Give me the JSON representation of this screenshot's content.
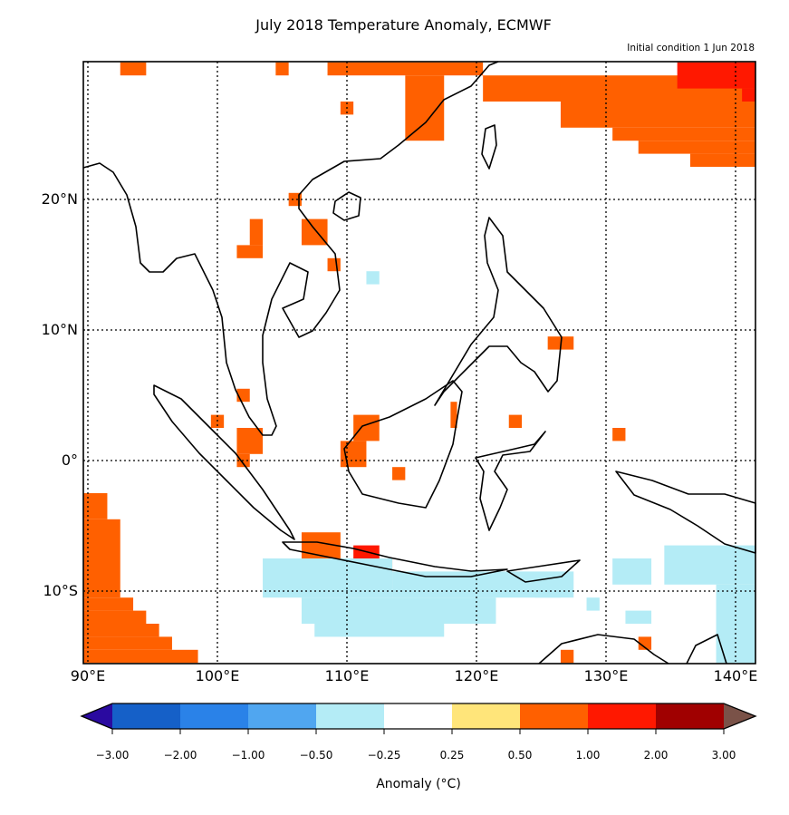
{
  "title": "July 2018 Temperature Anomaly, ECMWF",
  "subtitle": "Initial condition 1 Jun 2018",
  "map": {
    "extent": {
      "lon": [
        89.65,
        141.5
      ],
      "lat": [
        -15.5,
        30.5
      ]
    },
    "lon_ticks": [
      {
        "value": 90,
        "label": "90°E"
      },
      {
        "value": 100,
        "label": "100°E"
      },
      {
        "value": 110,
        "label": "110°E"
      },
      {
        "value": 120,
        "label": "120°E"
      },
      {
        "value": 130,
        "label": "130°E"
      },
      {
        "value": 140,
        "label": "140°E"
      }
    ],
    "lat_ticks": [
      {
        "value": 20,
        "label": "20°N"
      },
      {
        "value": 10,
        "label": "10°N"
      },
      {
        "value": 0,
        "label": "0°"
      },
      {
        "value": -10,
        "label": "10°S"
      }
    ],
    "gridlines": "dotted",
    "anomaly_cells_note_units": "degrees lon/lat, category index into colorbar bins",
    "anomaly_cells": [
      [
        92.5,
        94.5,
        29.5,
        30.5,
        6
      ],
      [
        104.5,
        105.5,
        29.5,
        30.5,
        6
      ],
      [
        108.5,
        120.5,
        29.5,
        30.5,
        6
      ],
      [
        114.5,
        117.5,
        24.5,
        29.5,
        6
      ],
      [
        109.5,
        110.5,
        26.5,
        27.5,
        6
      ],
      [
        120.5,
        141.5,
        27.5,
        29.5,
        6
      ],
      [
        126.5,
        141.5,
        25.5,
        27.5,
        6
      ],
      [
        130.5,
        141.5,
        24.5,
        25.5,
        6
      ],
      [
        132.5,
        141.5,
        23.5,
        24.5,
        6
      ],
      [
        136.5,
        141.5,
        22.5,
        23.5,
        6
      ],
      [
        135.5,
        141.5,
        28.5,
        30.5,
        7
      ],
      [
        140.5,
        141.5,
        27.5,
        28.5,
        7
      ],
      [
        105.5,
        106.5,
        19.5,
        20.5,
        6
      ],
      [
        106.5,
        108.5,
        16.5,
        18.5,
        6
      ],
      [
        108.5,
        109.5,
        14.5,
        15.5,
        6
      ],
      [
        102.5,
        103.5,
        16.5,
        18.5,
        6
      ],
      [
        101.5,
        103.5,
        15.5,
        16.5,
        6
      ],
      [
        125.5,
        127.5,
        8.5,
        9.5,
        6
      ],
      [
        101.5,
        102.5,
        4.5,
        5.5,
        6
      ],
      [
        99.5,
        100.5,
        2.5,
        3.5,
        6
      ],
      [
        101.5,
        103.5,
        0.5,
        2.5,
        6
      ],
      [
        101.5,
        102.5,
        -0.5,
        0.5,
        6
      ],
      [
        110.5,
        112.5,
        1.5,
        3.5,
        6
      ],
      [
        109.5,
        111.5,
        -0.5,
        1.5,
        6
      ],
      [
        118,
        118.5,
        2.5,
        4.5,
        6
      ],
      [
        113.5,
        114.5,
        -1.5,
        -0.5,
        6
      ],
      [
        122.5,
        123.5,
        2.5,
        3.5,
        6
      ],
      [
        130.5,
        131.5,
        1.5,
        2.5,
        6
      ],
      [
        89.65,
        91.5,
        -4.5,
        -2.5,
        6
      ],
      [
        89.65,
        92.5,
        -10.5,
        -4.5,
        6
      ],
      [
        89.65,
        93.5,
        -11.5,
        -10.5,
        6
      ],
      [
        89.65,
        94.5,
        -12.5,
        -11.5,
        6
      ],
      [
        89.65,
        95.5,
        -13.5,
        -12.5,
        6
      ],
      [
        89.65,
        96.5,
        -14.5,
        -13.5,
        6
      ],
      [
        89.65,
        98.5,
        -15.5,
        -14.5,
        6
      ],
      [
        106.5,
        109.5,
        -7.5,
        -5.5,
        6
      ],
      [
        112.5,
        113.5,
        -8.5,
        -7.5,
        6
      ],
      [
        132.5,
        133.5,
        -14.5,
        -13.5,
        6
      ],
      [
        126.5,
        127.5,
        -15.5,
        -14.5,
        6
      ],
      [
        110.5,
        112.5,
        -7.5,
        -6.5,
        7
      ],
      [
        103.5,
        113.5,
        -10.5,
        -7.5,
        3
      ],
      [
        106.5,
        121.5,
        -12.5,
        -10.5,
        3
      ],
      [
        107.5,
        117.5,
        -13.5,
        -12.5,
        3
      ],
      [
        113.5,
        127.5,
        -10.5,
        -8.5,
        3
      ],
      [
        124.5,
        126.5,
        -10.5,
        -9.5,
        3
      ],
      [
        130.5,
        133.5,
        -9.5,
        -7.5,
        3
      ],
      [
        134.5,
        141.5,
        -9.5,
        -6.5,
        3
      ],
      [
        138.5,
        141.5,
        -15.5,
        -9.5,
        3
      ],
      [
        111.5,
        112.5,
        13.5,
        14.5,
        3
      ],
      [
        128.5,
        129.5,
        -11.5,
        -10.5,
        3
      ],
      [
        131.5,
        133.5,
        -12.5,
        -11.5,
        3
      ]
    ]
  },
  "colorbar": {
    "label": "Anomaly (°C)",
    "ticks": [
      "−3.00",
      "−2.00",
      "−1.00",
      "−0.50",
      "−0.25",
      "0.25",
      "0.50",
      "1.00",
      "2.00",
      "3.00"
    ],
    "colors": [
      "#1560c8",
      "#2a82e8",
      "#50a6f0",
      "#b4ecf6",
      "#ffffff",
      "#ffe57a",
      "#ff6000",
      "#ff1800",
      "#a00000"
    ],
    "under_color": "#2a0aa0",
    "over_color": "#7a5248"
  }
}
